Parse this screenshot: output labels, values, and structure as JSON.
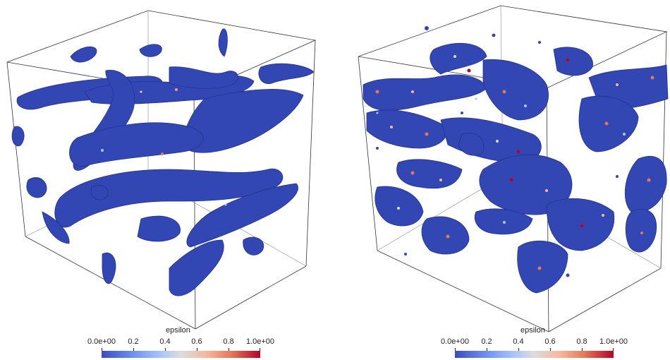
{
  "panels": [
    {
      "id": "left",
      "colorbar": {
        "title": "epsilon",
        "tick_labels": [
          "0.0e+00",
          "0.2",
          "0.4",
          "0.6",
          "0.8",
          "1.0e+00"
        ],
        "tick_values": [
          0.0,
          0.2,
          0.4,
          0.6,
          0.8,
          1.0
        ],
        "range": [
          0.0,
          1.0
        ],
        "colormap": [
          "#3b4cc0",
          "#dddcdc",
          "#b40426"
        ]
      },
      "surface_color": "#3347b4"
    },
    {
      "id": "right",
      "colorbar": {
        "title": "epsilon",
        "tick_labels": [
          "0.0e+00",
          "0.2",
          "0.4",
          "0.6",
          "0.8",
          "1.0e+00"
        ],
        "tick_values": [
          0.0,
          0.2,
          0.4,
          0.6,
          0.8,
          1.0
        ],
        "range": [
          0.0,
          1.0
        ],
        "colormap": [
          "#3b4cc0",
          "#dddcdc",
          "#b40426"
        ]
      },
      "surface_color": "#3347b4"
    }
  ]
}
